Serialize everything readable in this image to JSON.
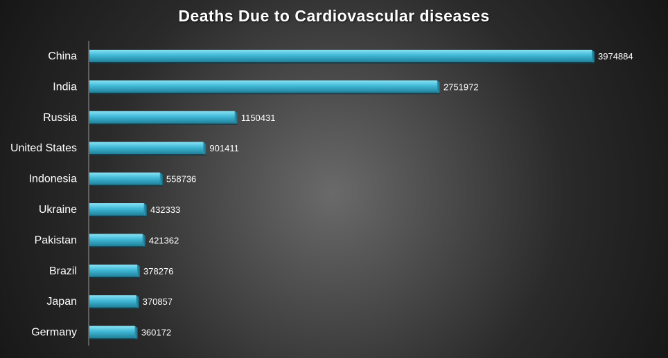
{
  "chart_data": {
    "type": "bar",
    "orientation": "horizontal",
    "title": "Deaths Due to Cardiovascular diseases",
    "xlabel": "",
    "ylabel": "",
    "categories": [
      "China",
      "India",
      "Russia",
      "United States",
      "Indonesia",
      "Ukraine",
      "Pakistan",
      "Brazil",
      "Japan",
      "Germany"
    ],
    "values": [
      3974884,
      2751972,
      1150431,
      901411,
      558736,
      432333,
      421362,
      378276,
      370857,
      360172
    ],
    "data_labels": [
      "3974884",
      "2751972",
      "1150431",
      "901411",
      "558736",
      "432333",
      "421362",
      "378276",
      "370857",
      "360172"
    ],
    "xlim": [
      0,
      4500000
    ],
    "grid": false,
    "legend": "none",
    "colors": {
      "bar": "#3fb8d6",
      "bar_light": "#8ae2f4",
      "bar_dark": "#1f7f98",
      "axis": "#9a9a9a",
      "text": "#ffffff"
    }
  }
}
